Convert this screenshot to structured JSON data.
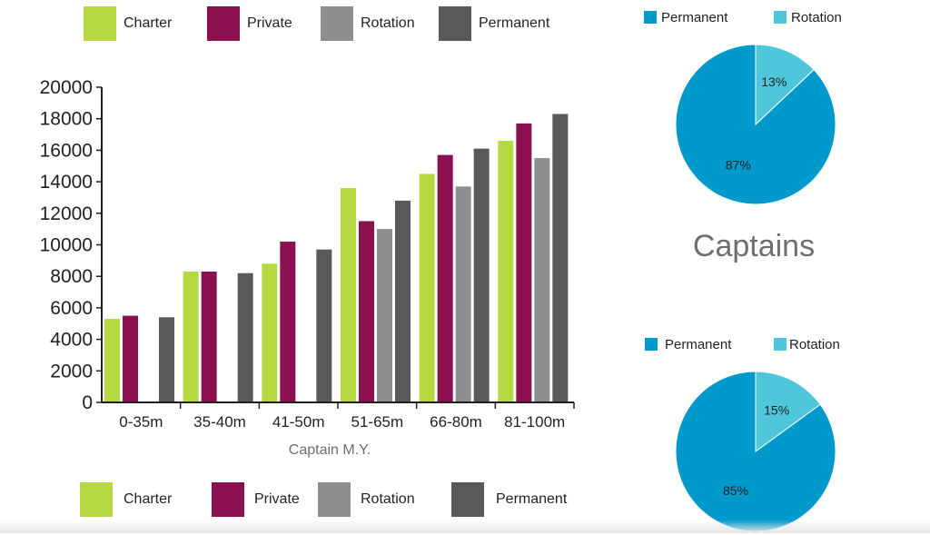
{
  "colors": {
    "charter": "#b5d843",
    "private": "#8c1050",
    "rotation": "#8e8e8e",
    "permanent": "#595959",
    "pie_permanent": "#0099cc",
    "pie_rotation": "#4fc6da"
  },
  "top_legend": [
    "Charter",
    "Private",
    "Rotation",
    "Permanent"
  ],
  "bottom_legend": [
    "Charter",
    "Private",
    "Rotation",
    "Permanent"
  ],
  "section_title": "Captains",
  "chart_data": [
    {
      "type": "bar",
      "title": "",
      "xlabel": "Captain M.Y.",
      "ylabel": "",
      "ylim": [
        0,
        20000
      ],
      "yticks": [
        0,
        2000,
        4000,
        6000,
        8000,
        10000,
        12000,
        14000,
        16000,
        18000,
        20000
      ],
      "categories": [
        "0-35m",
        "35-40m",
        "41-50m",
        "51-65m",
        "66-80m",
        "81-100m"
      ],
      "series": [
        {
          "name": "Charter",
          "values": [
            5300,
            8300,
            8800,
            13600,
            14500,
            16600
          ]
        },
        {
          "name": "Private",
          "values": [
            5500,
            8300,
            10200,
            11500,
            15700,
            17700
          ]
        },
        {
          "name": "Rotation",
          "values": [
            null,
            null,
            null,
            11000,
            13700,
            15500
          ]
        },
        {
          "name": "Permanent",
          "values": [
            5400,
            8200,
            9700,
            12800,
            16100,
            18300
          ]
        }
      ]
    },
    {
      "type": "pie",
      "title": "",
      "legend": [
        "Permanent",
        "Rotation"
      ],
      "slices": [
        {
          "label": "Permanent",
          "value": 87,
          "text": "87%"
        },
        {
          "label": "Rotation",
          "value": 13,
          "text": "13%"
        }
      ]
    },
    {
      "type": "pie",
      "title": "",
      "legend": [
        "Permanent",
        "Rotation"
      ],
      "slices": [
        {
          "label": "Permanent",
          "value": 85,
          "text": "85%"
        },
        {
          "label": "Rotation",
          "value": 15,
          "text": "15%"
        }
      ]
    }
  ]
}
